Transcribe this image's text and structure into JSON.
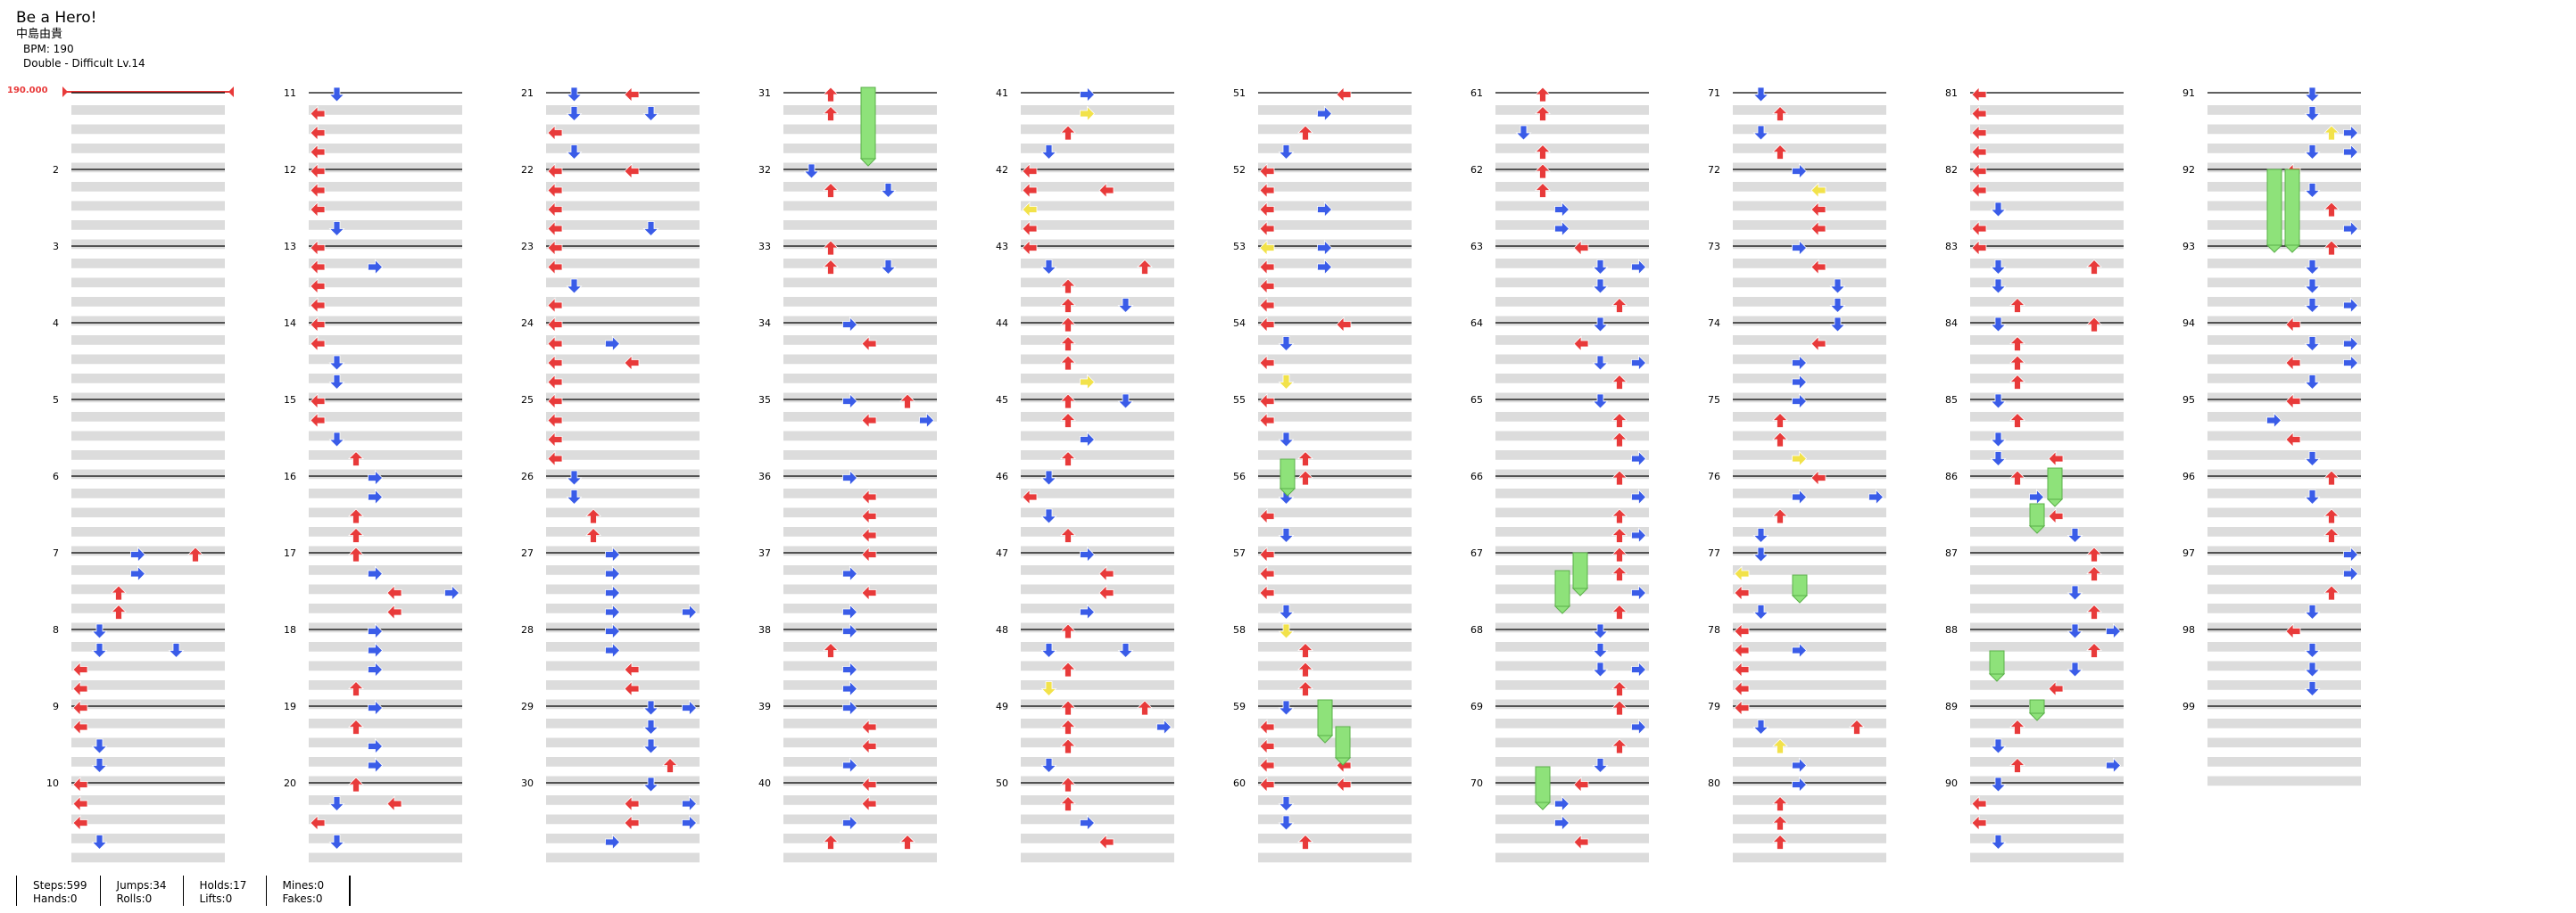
{
  "song": {
    "title": "Be a Hero!",
    "artist": "中島由貴",
    "bpm_text": "BPM: 190",
    "difficulty_text": "Double - Difficult  Lv.14"
  },
  "bpm_marker": "190.000",
  "measure_numbers": [
    "2",
    "3",
    "4",
    "5",
    "6",
    "7",
    "8",
    "9",
    "10",
    "11",
    "12",
    "13",
    "14",
    "15",
    "16",
    "17",
    "18",
    "19",
    "20",
    "21",
    "22",
    "23",
    "24",
    "25",
    "26",
    "27",
    "28",
    "29",
    "30",
    "31",
    "32",
    "33",
    "34",
    "35",
    "36",
    "37",
    "38",
    "39",
    "40",
    "41",
    "42",
    "43",
    "44",
    "45",
    "46",
    "47",
    "48",
    "49",
    "50",
    "51",
    "52",
    "53",
    "54",
    "55",
    "56",
    "57",
    "58",
    "59",
    "60",
    "61",
    "62",
    "63",
    "64",
    "65",
    "66",
    "67",
    "68",
    "69",
    "70",
    "71",
    "72",
    "73",
    "74",
    "75",
    "76",
    "77",
    "78",
    "79",
    "80",
    "81",
    "82",
    "83",
    "84",
    "85",
    "86",
    "87",
    "88",
    "89",
    "90",
    "91",
    "92",
    "93",
    "94",
    "95",
    "96",
    "97",
    "98",
    "99"
  ],
  "colors": {
    "arrow_red": "#e83a3a",
    "arrow_blue": "#3a5ce8",
    "arrow_yellow": "#f2e24a",
    "hold_green": "#8ee27a",
    "stripe": "#dcdcdc"
  },
  "stats": [
    {
      "line1": "Steps:599",
      "line2": "Hands:0"
    },
    {
      "line1": "Jumps:34",
      "line2": "Rolls:0"
    },
    {
      "line1": "Holds:17",
      "line2": "Lifts:0"
    },
    {
      "line1": "Mines:0",
      "line2": "Fakes:0"
    }
  ]
}
